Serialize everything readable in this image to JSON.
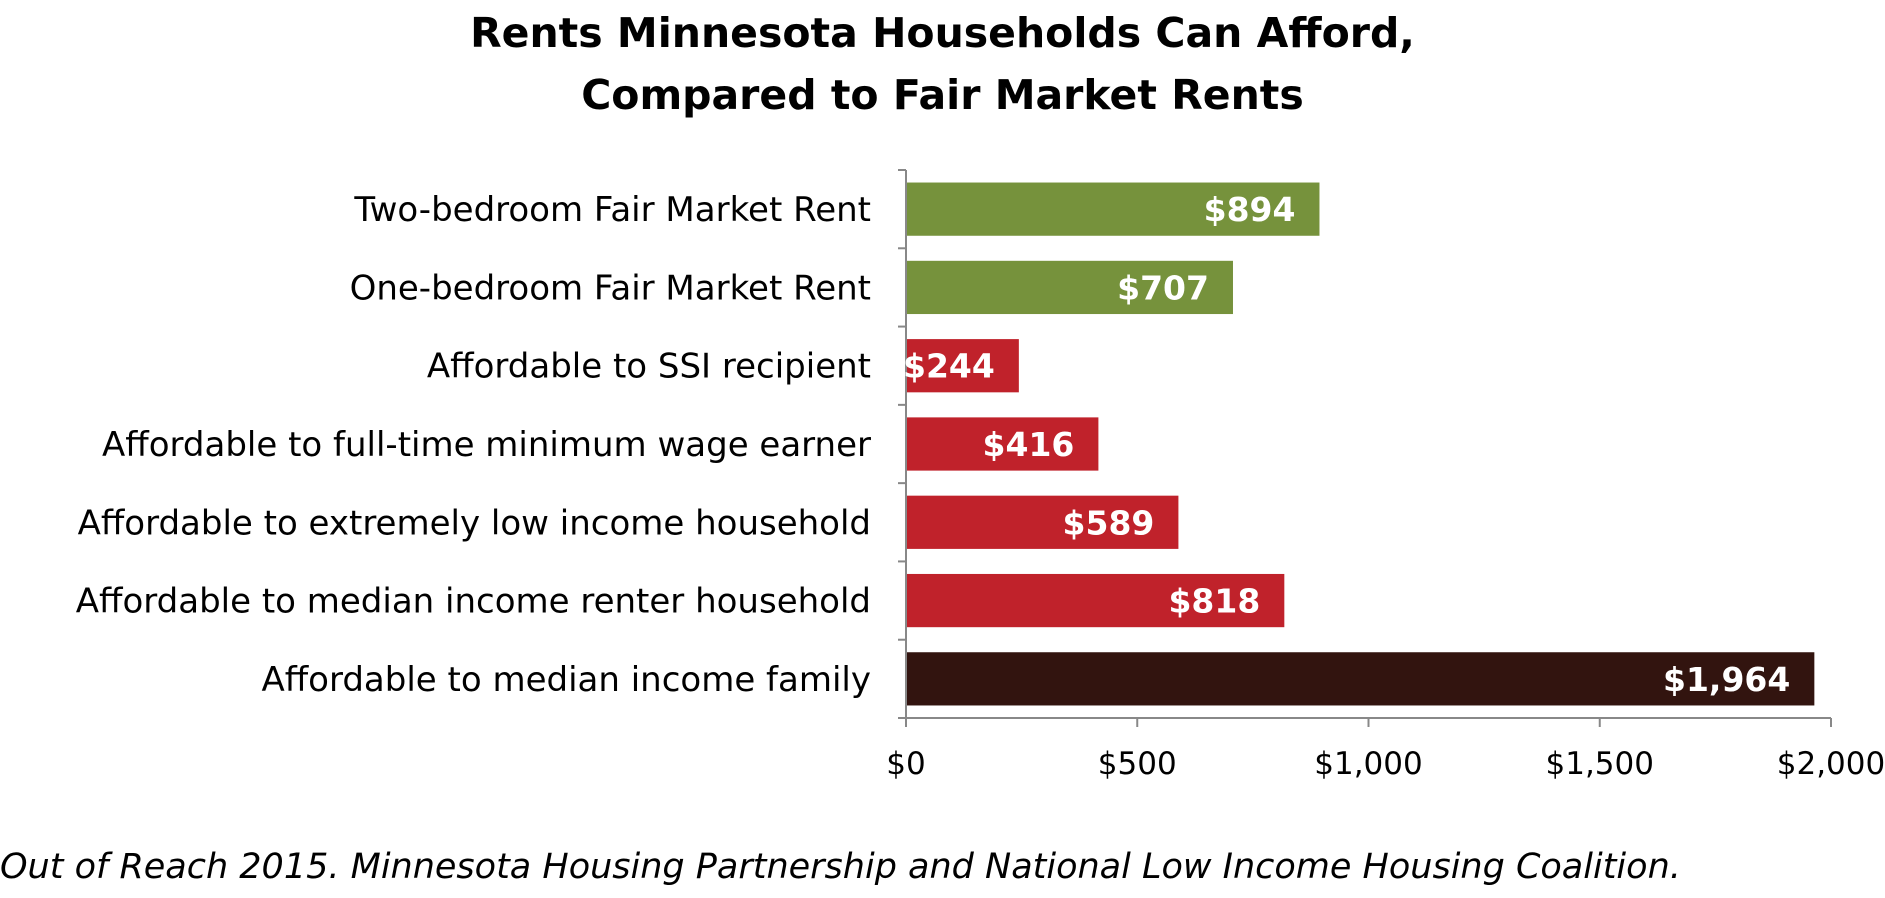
{
  "title_lines": [
    "Rents Minnesota Households Can Afford,",
    "Compared to Fair Market Rents"
  ],
  "source": "Out of Reach 2015. Minnesota Housing Partnership and National Low Income Housing Coalition.",
  "colors": {
    "fair_market": "#76923c",
    "affordable": "#c0222b",
    "family": "#32140f",
    "axis": "#888888",
    "label_text": "#ffffff"
  },
  "chart_data": {
    "type": "bar",
    "orientation": "horizontal",
    "categories": [
      "Two-bedroom Fair Market Rent",
      "One-bedroom Fair Market Rent",
      "Affordable to SSI recipient",
      "Affordable to full-time minimum wage earner",
      "Affordable to extremely low income household",
      "Affordable to median income renter household",
      "Affordable to median income family"
    ],
    "values": [
      894,
      707,
      244,
      416,
      589,
      818,
      1964
    ],
    "value_labels": [
      "$894",
      "$707",
      "$244",
      "$416",
      "$589",
      "$818",
      "$1,964"
    ],
    "bar_colors": [
      "#76923c",
      "#76923c",
      "#c0222b",
      "#c0222b",
      "#c0222b",
      "#c0222b",
      "#32140f"
    ],
    "xlim": [
      0,
      2000
    ],
    "xticks": [
      0,
      500,
      1000,
      1500,
      2000
    ],
    "xtick_labels": [
      "$0",
      "$500",
      "$1,000",
      "$1,500",
      "$2,000"
    ],
    "grid": false,
    "legend": "none"
  }
}
